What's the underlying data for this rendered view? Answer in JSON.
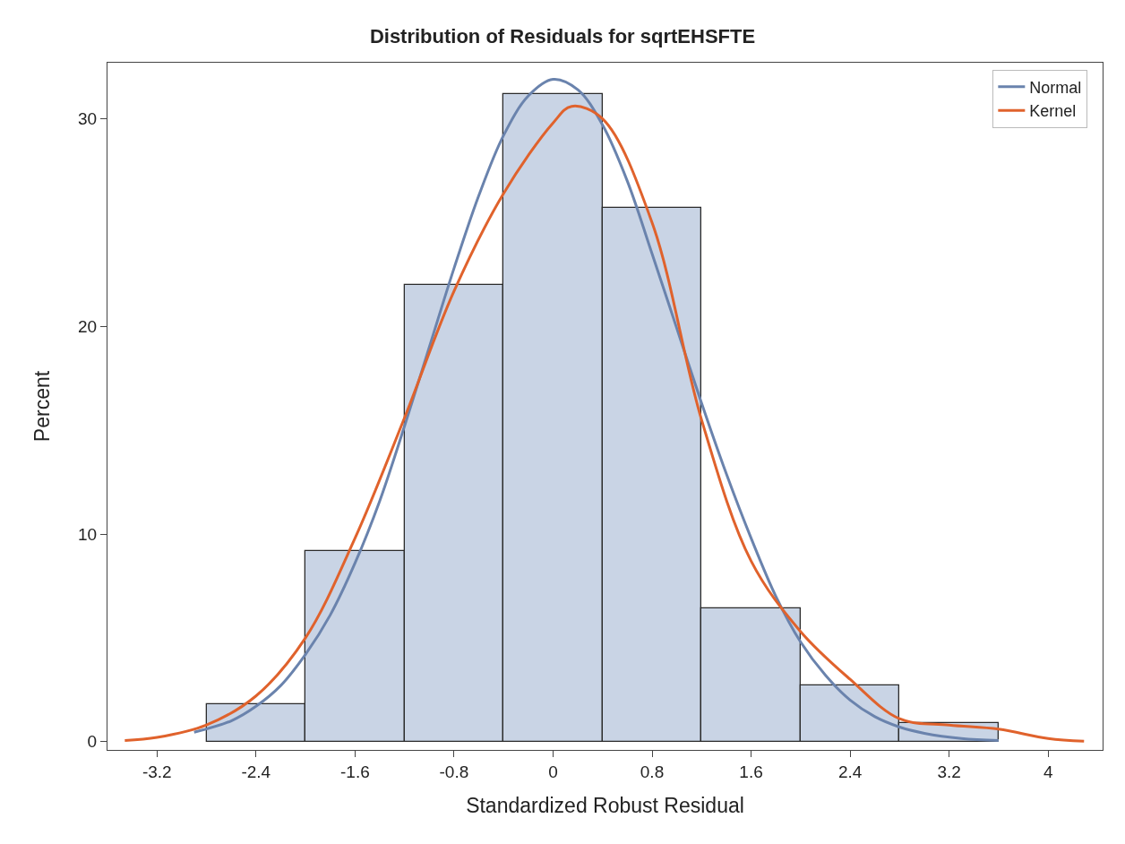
{
  "chart_data": {
    "type": "histogram",
    "title": "Distribution of Residuals for sqrtEHSFTE",
    "xlabel": "Standardized Robust Residual",
    "ylabel": "Percent",
    "bins": [
      -2.8,
      -2.0,
      -1.2,
      -0.4,
      0.4,
      1.2,
      2.0,
      2.8,
      3.6
    ],
    "values": [
      1.8,
      9.2,
      22.0,
      31.2,
      25.7,
      6.4,
      2.7,
      0.9
    ],
    "color": "#c9d4e5",
    "series": [
      {
        "name": "Normal",
        "type": "line",
        "color": "#6a83ad",
        "x": [
          -2.9,
          -2.6,
          -2.4,
          -2.2,
          -2.0,
          -1.8,
          -1.6,
          -1.4,
          -1.2,
          -1.0,
          -0.8,
          -0.6,
          -0.4,
          -0.2,
          0,
          0.2,
          0.4,
          0.6,
          0.8,
          1.0,
          1.2,
          1.4,
          1.6,
          1.8,
          2.0,
          2.2,
          2.4,
          2.6,
          2.8,
          3.0,
          3.3,
          3.6
        ],
        "values": [
          0.45,
          1.0,
          1.7,
          2.7,
          4.2,
          6.1,
          8.6,
          11.6,
          15.2,
          19.0,
          22.8,
          26.3,
          29.2,
          31.1,
          31.9,
          31.4,
          29.7,
          27.0,
          23.5,
          19.9,
          16.3,
          12.9,
          9.8,
          7.0,
          4.8,
          3.2,
          2.0,
          1.2,
          0.7,
          0.4,
          0.15,
          0.05
        ]
      },
      {
        "name": "Kernel",
        "type": "line",
        "color": "#e0622c",
        "x": [
          -3.46,
          -3.2,
          -2.8,
          -2.4,
          -2.0,
          -1.6,
          -1.2,
          -0.8,
          -0.4,
          0,
          0.15,
          0.4,
          0.8,
          1.2,
          1.6,
          2.0,
          2.4,
          2.8,
          3.2,
          3.6,
          4.0,
          4.29
        ],
        "values": [
          0.05,
          0.2,
          0.8,
          2.2,
          5.0,
          9.8,
          15.6,
          21.7,
          26.4,
          29.8,
          30.6,
          30.0,
          25.0,
          15.5,
          8.7,
          5.3,
          3.0,
          1.1,
          0.8,
          0.6,
          0.15,
          0.02
        ]
      }
    ],
    "xlim": [
      -3.6,
      4.44
    ],
    "xticks": [
      -3.2,
      -2.4,
      -1.6,
      -0.8,
      0,
      0.8,
      1.6,
      2.4,
      3.2,
      4
    ],
    "ylim": [
      -0.4,
      32.7
    ],
    "yticks": [
      0,
      10,
      20,
      30
    ],
    "legend": "top right"
  }
}
